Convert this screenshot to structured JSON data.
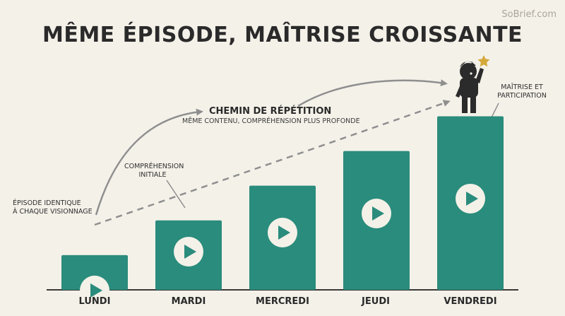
{
  "watermark": "SoBrief.com",
  "title": "MÊME ÉPISODE, MAÎTRISE CROISSANTE",
  "repetition_path": {
    "title": "CHEMIN DE RÉPÉTITION",
    "subtitle": "MÊME CONTENU, COMPRÉHENSION PLUS PROFONDE"
  },
  "annotations": [
    {
      "lines": [
        "ÉPISODE IDENTIQUE",
        "À CHAQUE VISIONNAGE"
      ]
    },
    {
      "lines": [
        "COMPRÉHENSION",
        "INITIALE"
      ]
    },
    {
      "lines": [
        "MAÎTRISE ET",
        "PARTICIPATION"
      ]
    }
  ],
  "colors": {
    "bar": "#2a8c7c",
    "play_circle": "#f4f1e9",
    "play_triangle": "#2a8c7c",
    "arrow": "#8f8f8f",
    "star": "#d4a93a",
    "child": "#2b2b2b"
  },
  "chart_data": {
    "type": "bar",
    "categories": [
      "LUNDI",
      "MARDI",
      "MERCREDI",
      "JEUDI",
      "VENDREDI"
    ],
    "values": [
      1,
      2,
      3,
      4,
      5
    ],
    "ylim": [
      0,
      5.6
    ],
    "legend": "none",
    "grid": false
  }
}
